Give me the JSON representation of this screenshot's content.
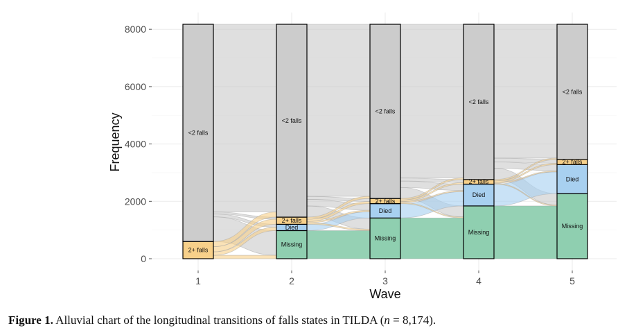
{
  "chart_data": {
    "type": "alluvial",
    "xlabel": "Wave",
    "ylabel": "Frequency",
    "x": [
      "1",
      "2",
      "3",
      "4",
      "5"
    ],
    "ylim": [
      0,
      8174
    ],
    "yticks": [
      0,
      2000,
      4000,
      6000,
      8000
    ],
    "grid": true,
    "states": [
      "Missing",
      "Died",
      "2+ falls",
      "<2 falls"
    ],
    "colors": {
      "Missing": "#8fcfb0",
      "Died": "#a8d0f0",
      "2+ falls": "#f7d08a",
      "<2 falls": "#cccccc"
    },
    "strata": [
      {
        "wave": "1",
        "Missing": 0,
        "Died": 0,
        "2+ falls": 600,
        "<2 falls": 7574
      },
      {
        "wave": "2",
        "Missing": 980,
        "Died": 220,
        "2+ falls": 250,
        "<2 falls": 6724
      },
      {
        "wave": "3",
        "Missing": 1420,
        "Died": 500,
        "2+ falls": 180,
        "<2 falls": 6074
      },
      {
        "wave": "4",
        "Missing": 1840,
        "Died": 760,
        "2+ falls": 160,
        "<2 falls": 5414
      },
      {
        "wave": "5",
        "Missing": 2270,
        "Died": 1010,
        "2+ falls": 180,
        "<2 falls": 4714
      }
    ]
  },
  "caption": {
    "label": "Figure 1.",
    "text_before": "Alluvial chart of the longitudinal transitions of falls states in TILDA (",
    "n_symbol": "n",
    "text_after": " = 8,174)."
  }
}
